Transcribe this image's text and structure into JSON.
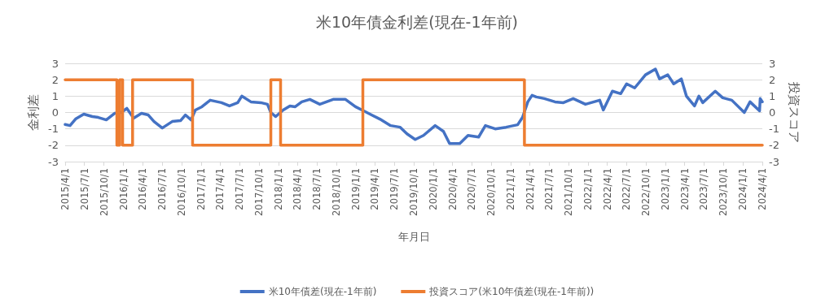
{
  "chart_data": {
    "type": "line",
    "title": "米10年債金利差(現在-1年前)",
    "xlabel": "年月日",
    "ylabel": "金利差",
    "y2label": "投資スコア",
    "xlim": [
      "2015-04-01",
      "2024-04-01"
    ],
    "xticks": [
      {
        "value": "2015-04-01",
        "label": "2015/4/1"
      },
      {
        "value": "2015-07-01",
        "label": "2015/7/1"
      },
      {
        "value": "2015-10-01",
        "label": "2015/10/1"
      },
      {
        "value": "2016-01-01",
        "label": "2016/1/1"
      },
      {
        "value": "2016-04-01",
        "label": "2016/4/1"
      },
      {
        "value": "2016-07-01",
        "label": "2016/7/1"
      },
      {
        "value": "2016-10-01",
        "label": "2016/10/1"
      },
      {
        "value": "2017-01-01",
        "label": "2017/1/1"
      },
      {
        "value": "2017-04-01",
        "label": "2017/4/1"
      },
      {
        "value": "2017-07-01",
        "label": "2017/7/1"
      },
      {
        "value": "2017-10-01",
        "label": "2017/10/1"
      },
      {
        "value": "2018-01-01",
        "label": "2018/1/1"
      },
      {
        "value": "2018-04-01",
        "label": "2018/4/1"
      },
      {
        "value": "2018-07-01",
        "label": "2018/7/1"
      },
      {
        "value": "2018-10-01",
        "label": "2018/10/1"
      },
      {
        "value": "2019-01-01",
        "label": "2019/1/1"
      },
      {
        "value": "2019-04-01",
        "label": "2019/4/1"
      },
      {
        "value": "2019-07-01",
        "label": "2019/7/1"
      },
      {
        "value": "2019-10-01",
        "label": "2019/10/1"
      },
      {
        "value": "2020-01-01",
        "label": "2020/1/1"
      },
      {
        "value": "2020-04-01",
        "label": "2020/4/1"
      },
      {
        "value": "2020-07-01",
        "label": "2020/7/1"
      },
      {
        "value": "2020-10-01",
        "label": "2020/10/1"
      },
      {
        "value": "2021-01-01",
        "label": "2021/1/1"
      },
      {
        "value": "2021-04-01",
        "label": "2021/4/1"
      },
      {
        "value": "2021-07-01",
        "label": "2021/7/1"
      },
      {
        "value": "2021-10-01",
        "label": "2021/10/1"
      },
      {
        "value": "2022-01-01",
        "label": "2022/1/1"
      },
      {
        "value": "2022-04-01",
        "label": "2022/4/1"
      },
      {
        "value": "2022-07-01",
        "label": "2022/7/1"
      },
      {
        "value": "2022-10-01",
        "label": "2022/10/1"
      },
      {
        "value": "2023-01-01",
        "label": "2023/1/1"
      },
      {
        "value": "2023-04-01",
        "label": "2023/4/1"
      },
      {
        "value": "2023-07-01",
        "label": "2023/7/1"
      },
      {
        "value": "2023-10-01",
        "label": "2023/10/1"
      },
      {
        "value": "2024-01-01",
        "label": "2024/1/1"
      },
      {
        "value": "2024-04-01",
        "label": "2024/4/1"
      }
    ],
    "ylim": [
      -3,
      3
    ],
    "yticks": [
      -3,
      -2,
      -1,
      0,
      1,
      2,
      3
    ],
    "y2lim": [
      -3,
      3
    ],
    "y2ticks": [
      -3,
      -2,
      -1,
      0,
      1,
      2,
      3
    ],
    "grid": "y",
    "legend": "bottom",
    "marker": "none",
    "line_style": "solid",
    "series": [
      {
        "name": "米10年債差(現在-1年前)",
        "color": "#4472c4",
        "x": [
          "2015-04-01",
          "2015-04-24",
          "2015-05-20",
          "2015-06-28",
          "2015-08-07",
          "2015-09-04",
          "2015-10-12",
          "2015-11-20",
          "2015-12-21",
          "2016-01-17",
          "2016-02-18",
          "2016-03-26",
          "2016-04-27",
          "2016-05-24",
          "2016-07-02",
          "2016-08-18",
          "2016-09-26",
          "2016-10-19",
          "2016-11-15",
          "2016-12-05",
          "2017-01-05",
          "2017-02-13",
          "2017-04-07",
          "2017-05-15",
          "2017-06-23",
          "2017-07-12",
          "2017-08-24",
          "2017-10-10",
          "2017-11-10",
          "2017-11-26",
          "2017-12-19",
          "2018-01-23",
          "2018-02-24",
          "2018-03-21",
          "2018-04-21",
          "2018-05-29",
          "2018-07-15",
          "2018-09-16",
          "2018-11-13",
          "2018-12-30",
          "2019-02-07",
          "2019-03-16",
          "2019-04-24",
          "2019-06-14",
          "2019-07-29",
          "2019-08-30",
          "2019-10-08",
          "2019-11-16",
          "2020-01-10",
          "2020-02-18",
          "2020-03-18",
          "2020-05-05",
          "2020-06-13",
          "2020-08-02",
          "2020-09-03",
          "2020-10-19",
          "2020-12-09",
          "2021-02-02",
          "2021-02-25",
          "2021-03-22",
          "2021-04-11",
          "2021-05-01",
          "2021-06-08",
          "2021-07-28",
          "2021-09-06",
          "2021-10-22",
          "2021-12-19",
          "2022-02-24",
          "2022-03-13",
          "2022-04-25",
          "2022-06-03",
          "2022-07-01",
          "2022-08-08",
          "2022-09-28",
          "2022-11-14",
          "2022-12-03",
          "2023-01-11",
          "2023-02-08",
          "2023-03-16",
          "2023-04-09",
          "2023-05-17",
          "2023-06-07",
          "2023-06-25",
          "2023-08-23",
          "2023-09-27",
          "2023-11-09",
          "2024-01-07",
          "2024-02-03",
          "2024-03-19",
          "2024-03-22",
          "2024-04-01"
        ],
        "values": [
          -0.73,
          -0.8,
          -0.4,
          -0.1,
          -0.25,
          -0.3,
          -0.45,
          -0.05,
          0,
          0.25,
          -0.35,
          -0.05,
          -0.15,
          -0.55,
          -0.95,
          -0.55,
          -0.5,
          -0.15,
          -0.45,
          0.15,
          0.35,
          0.75,
          0.6,
          0.4,
          0.6,
          1.0,
          0.65,
          0.6,
          0.5,
          0,
          -0.25,
          0.15,
          0.4,
          0.35,
          0.65,
          0.8,
          0.5,
          0.8,
          0.8,
          0.35,
          0.1,
          -0.15,
          -0.4,
          -0.8,
          -0.9,
          -1.3,
          -1.65,
          -1.4,
          -0.8,
          -1.15,
          -1.9,
          -1.9,
          -1.4,
          -1.5,
          -0.8,
          -1.0,
          -0.9,
          -0.75,
          -0.3,
          0.65,
          1.05,
          0.95,
          0.85,
          0.65,
          0.6,
          0.85,
          0.5,
          0.75,
          0.15,
          1.3,
          1.15,
          1.75,
          1.5,
          2.3,
          2.65,
          2.05,
          2.3,
          1.75,
          2.05,
          1.0,
          0.4,
          1.0,
          0.6,
          1.3,
          0.9,
          0.75,
          0,
          0.65,
          0.1,
          0.85,
          0.65
        ]
      },
      {
        "name": "投資スコア(米10年債差(現在-1年前))",
        "color": "#ed7d31",
        "type": "step",
        "axis": "y2",
        "x": [
          "2015-04-01",
          "2015-12-01",
          "2015-12-14",
          "2015-12-28",
          "2016-02-13",
          "2016-11-22",
          "2017-11-26",
          "2018-01-11",
          "2019-02-03",
          "2021-03-06",
          "2024-04-01"
        ],
        "values": [
          2,
          -2,
          2,
          -2,
          2,
          -2,
          2,
          -2,
          2,
          -2,
          -2
        ]
      }
    ]
  }
}
